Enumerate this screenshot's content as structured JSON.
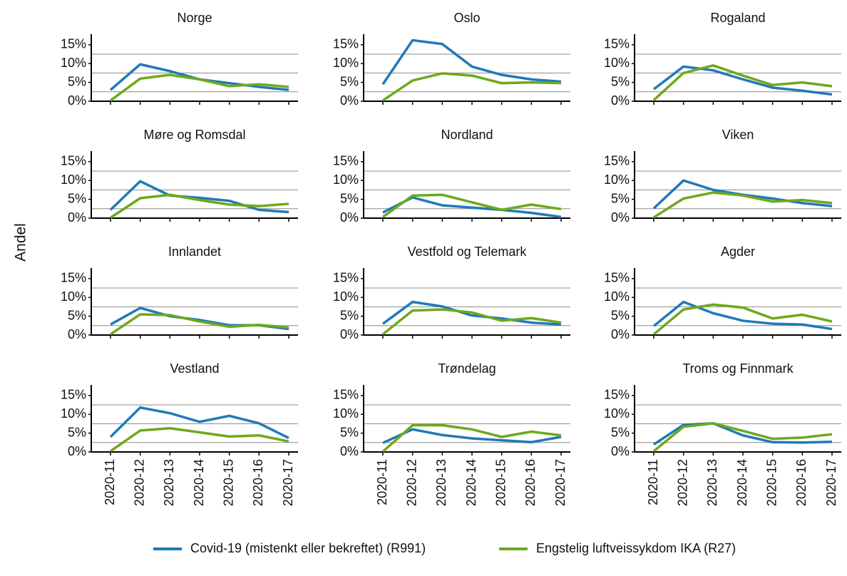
{
  "ylabel": "Andel",
  "chart_data": [
    {
      "type": "line",
      "title": "Norge",
      "categories": [
        "2020-11",
        "2020-12",
        "2020-13",
        "2020-14",
        "2020-15",
        "2020-16",
        "2020-17"
      ],
      "series": [
        {
          "name": "Covid-19 (mistenkt eller bekreftet) (R991)",
          "color": "#1f7ab8",
          "values": [
            3,
            9.8,
            8,
            5.8,
            4.8,
            3.8,
            3
          ]
        },
        {
          "name": "Engstelig luftveissykdom IKA (R27)",
          "color": "#6ea81c",
          "values": [
            0.2,
            6,
            7,
            5.8,
            4,
            4.5,
            3.8
          ]
        }
      ],
      "ylim": [
        0,
        17.8
      ],
      "yticks": [
        {
          "value": 0,
          "label": "0%"
        },
        {
          "value": 5,
          "label": "5%"
        },
        {
          "value": 10,
          "label": "10%"
        },
        {
          "value": 15,
          "label": "15%"
        }
      ],
      "ygrid": [
        2.5,
        7.5,
        12.5
      ]
    },
    {
      "type": "line",
      "title": "Oslo",
      "categories": [
        "2020-11",
        "2020-12",
        "2020-13",
        "2020-14",
        "2020-15",
        "2020-16",
        "2020-17"
      ],
      "series": [
        {
          "name": "Covid-19 (mistenkt eller bekreftet) (R991)",
          "color": "#1f7ab8",
          "values": [
            4.5,
            16.2,
            15.2,
            9.2,
            7,
            5.8,
            5.2
          ]
        },
        {
          "name": "Engstelig luftveissykdom IKA (R27)",
          "color": "#6ea81c",
          "values": [
            0.2,
            5.5,
            7.4,
            6.8,
            4.8,
            5,
            4.8
          ]
        }
      ],
      "ylim": [
        0,
        17.8
      ],
      "yticks": [
        {
          "value": 0,
          "label": "0%"
        },
        {
          "value": 5,
          "label": "5%"
        },
        {
          "value": 10,
          "label": "10%"
        },
        {
          "value": 15,
          "label": "15%"
        }
      ],
      "ygrid": [
        2.5,
        7.5,
        12.5
      ]
    },
    {
      "type": "line",
      "title": "Rogaland",
      "categories": [
        "2020-11",
        "2020-12",
        "2020-13",
        "2020-14",
        "2020-15",
        "2020-16",
        "2020-17"
      ],
      "series": [
        {
          "name": "Covid-19 (mistenkt eller bekreftet) (R991)",
          "color": "#1f7ab8",
          "values": [
            3.2,
            9.2,
            8.2,
            5.8,
            3.6,
            2.8,
            1.8
          ]
        },
        {
          "name": "Engstelig luftveissykdom IKA (R27)",
          "color": "#6ea81c",
          "values": [
            0.3,
            7.5,
            9.5,
            6.8,
            4.3,
            5,
            4
          ]
        }
      ],
      "ylim": [
        0,
        17.8
      ],
      "yticks": [
        {
          "value": 0,
          "label": "0%"
        },
        {
          "value": 5,
          "label": "5%"
        },
        {
          "value": 10,
          "label": "10%"
        },
        {
          "value": 15,
          "label": "15%"
        }
      ],
      "ygrid": [
        2.5,
        7.5,
        12.5
      ]
    },
    {
      "type": "line",
      "title": "Møre og Romsdal",
      "categories": [
        "2020-11",
        "2020-12",
        "2020-13",
        "2020-14",
        "2020-15",
        "2020-16",
        "2020-17"
      ],
      "series": [
        {
          "name": "Covid-19 (mistenkt eller bekreftet) (R991)",
          "color": "#1f7ab8",
          "values": [
            2.2,
            9.8,
            6,
            5.4,
            4.6,
            2.2,
            1.6
          ]
        },
        {
          "name": "Engstelig luftveissykdom IKA (R27)",
          "color": "#6ea81c",
          "values": [
            0.1,
            5.3,
            6.2,
            4.8,
            3.6,
            3.2,
            3.8
          ]
        }
      ],
      "ylim": [
        0,
        17.8
      ],
      "yticks": [
        {
          "value": 0,
          "label": "0%"
        },
        {
          "value": 5,
          "label": "5%"
        },
        {
          "value": 10,
          "label": "10%"
        },
        {
          "value": 15,
          "label": "15%"
        }
      ],
      "ygrid": [
        2.5,
        7.5,
        12.5
      ]
    },
    {
      "type": "line",
      "title": "Nordland",
      "categories": [
        "2020-11",
        "2020-12",
        "2020-13",
        "2020-14",
        "2020-15",
        "2020-16",
        "2020-17"
      ],
      "series": [
        {
          "name": "Covid-19 (mistenkt eller bekreftet) (R991)",
          "color": "#1f7ab8",
          "values": [
            1.5,
            5.5,
            3.4,
            2.8,
            2.2,
            1.4,
            0.3
          ]
        },
        {
          "name": "Engstelig luftveissykdom IKA (R27)",
          "color": "#6ea81c",
          "values": [
            0.3,
            6,
            6.2,
            4.2,
            2.2,
            3.6,
            2.4
          ]
        }
      ],
      "ylim": [
        0,
        17.8
      ],
      "yticks": [
        {
          "value": 0,
          "label": "0%"
        },
        {
          "value": 5,
          "label": "5%"
        },
        {
          "value": 10,
          "label": "10%"
        },
        {
          "value": 15,
          "label": "15%"
        }
      ],
      "ygrid": [
        2.5,
        7.5,
        12.5
      ]
    },
    {
      "type": "line",
      "title": "Viken",
      "categories": [
        "2020-11",
        "2020-12",
        "2020-13",
        "2020-14",
        "2020-15",
        "2020-16",
        "2020-17"
      ],
      "series": [
        {
          "name": "Covid-19 (mistenkt eller bekreftet) (R991)",
          "color": "#1f7ab8",
          "values": [
            2.6,
            10,
            7.5,
            6.2,
            5.2,
            4,
            3.2
          ]
        },
        {
          "name": "Engstelig luftveissykdom IKA (R27)",
          "color": "#6ea81c",
          "values": [
            0.2,
            5.2,
            6.8,
            6,
            4.4,
            4.8,
            4
          ]
        }
      ],
      "ylim": [
        0,
        17.8
      ],
      "yticks": [
        {
          "value": 0,
          "label": "0%"
        },
        {
          "value": 5,
          "label": "5%"
        },
        {
          "value": 10,
          "label": "10%"
        },
        {
          "value": 15,
          "label": "15%"
        }
      ],
      "ygrid": [
        2.5,
        7.5,
        12.5
      ]
    },
    {
      "type": "line",
      "title": "Innlandet",
      "categories": [
        "2020-11",
        "2020-12",
        "2020-13",
        "2020-14",
        "2020-15",
        "2020-16",
        "2020-17"
      ],
      "series": [
        {
          "name": "Covid-19 (mistenkt eller bekreftet) (R991)",
          "color": "#1f7ab8",
          "values": [
            2.8,
            7.2,
            5,
            4,
            2.6,
            2.6,
            1.6
          ]
        },
        {
          "name": "Engstelig luftveissykdom IKA (R27)",
          "color": "#6ea81c",
          "values": [
            0.2,
            5.5,
            5.3,
            3.6,
            2.2,
            2.7,
            2
          ]
        }
      ],
      "ylim": [
        0,
        17.8
      ],
      "yticks": [
        {
          "value": 0,
          "label": "0%"
        },
        {
          "value": 5,
          "label": "5%"
        },
        {
          "value": 10,
          "label": "10%"
        },
        {
          "value": 15,
          "label": "15%"
        }
      ],
      "ygrid": [
        2.5,
        7.5,
        12.5
      ]
    },
    {
      "type": "line",
      "title": "Vestfold og Telemark",
      "categories": [
        "2020-11",
        "2020-12",
        "2020-13",
        "2020-14",
        "2020-15",
        "2020-16",
        "2020-17"
      ],
      "series": [
        {
          "name": "Covid-19 (mistenkt eller bekreftet) (R991)",
          "color": "#1f7ab8",
          "values": [
            3,
            8.8,
            7.6,
            5.2,
            4.4,
            3.3,
            2.8
          ]
        },
        {
          "name": "Engstelig luftveissykdom IKA (R27)",
          "color": "#6ea81c",
          "values": [
            0.2,
            6.5,
            6.8,
            6,
            3.8,
            4.5,
            3.3
          ]
        }
      ],
      "ylim": [
        0,
        17.8
      ],
      "yticks": [
        {
          "value": 0,
          "label": "0%"
        },
        {
          "value": 5,
          "label": "5%"
        },
        {
          "value": 10,
          "label": "10%"
        },
        {
          "value": 15,
          "label": "15%"
        }
      ],
      "ygrid": [
        2.5,
        7.5,
        12.5
      ]
    },
    {
      "type": "line",
      "title": "Agder",
      "categories": [
        "2020-11",
        "2020-12",
        "2020-13",
        "2020-14",
        "2020-15",
        "2020-16",
        "2020-17"
      ],
      "series": [
        {
          "name": "Covid-19 (mistenkt eller bekreftet) (R991)",
          "color": "#1f7ab8",
          "values": [
            2.4,
            8.8,
            5.8,
            3.8,
            3,
            2.8,
            1.6
          ]
        },
        {
          "name": "Engstelig luftveissykdom IKA (R27)",
          "color": "#6ea81c",
          "values": [
            0.2,
            6.8,
            8.1,
            7.3,
            4.4,
            5.4,
            3.6
          ]
        }
      ],
      "ylim": [
        0,
        17.8
      ],
      "yticks": [
        {
          "value": 0,
          "label": "0%"
        },
        {
          "value": 5,
          "label": "5%"
        },
        {
          "value": 10,
          "label": "10%"
        },
        {
          "value": 15,
          "label": "15%"
        }
      ],
      "ygrid": [
        2.5,
        7.5,
        12.5
      ]
    },
    {
      "type": "line",
      "title": "Vestland",
      "categories": [
        "2020-11",
        "2020-12",
        "2020-13",
        "2020-14",
        "2020-15",
        "2020-16",
        "2020-17"
      ],
      "series": [
        {
          "name": "Covid-19 (mistenkt eller bekreftet) (R991)",
          "color": "#1f7ab8",
          "values": [
            4,
            11.8,
            10.3,
            8,
            9.6,
            7.6,
            3.7
          ]
        },
        {
          "name": "Engstelig luftveissykdom IKA (R27)",
          "color": "#6ea81c",
          "values": [
            0.2,
            5.7,
            6.3,
            5.2,
            4.1,
            4.4,
            2.8
          ]
        }
      ],
      "ylim": [
        0,
        17.8
      ],
      "yticks": [
        {
          "value": 0,
          "label": "0%"
        },
        {
          "value": 5,
          "label": "5%"
        },
        {
          "value": 10,
          "label": "10%"
        },
        {
          "value": 15,
          "label": "15%"
        }
      ],
      "ygrid": [
        2.5,
        7.5,
        12.5
      ]
    },
    {
      "type": "line",
      "title": "Trøndelag",
      "categories": [
        "2020-11",
        "2020-12",
        "2020-13",
        "2020-14",
        "2020-15",
        "2020-16",
        "2020-17"
      ],
      "series": [
        {
          "name": "Covid-19 (mistenkt eller bekreftet) (R991)",
          "color": "#1f7ab8",
          "values": [
            2.4,
            6,
            4.5,
            3.6,
            3.1,
            2.6,
            4
          ]
        },
        {
          "name": "Engstelig luftveissykdom IKA (R27)",
          "color": "#6ea81c",
          "values": [
            0.1,
            7.1,
            7.1,
            6,
            4,
            5.4,
            4.4
          ]
        }
      ],
      "ylim": [
        0,
        17.8
      ],
      "yticks": [
        {
          "value": 0,
          "label": "0%"
        },
        {
          "value": 5,
          "label": "5%"
        },
        {
          "value": 10,
          "label": "10%"
        },
        {
          "value": 15,
          "label": "15%"
        }
      ],
      "ygrid": [
        2.5,
        7.5,
        12.5
      ]
    },
    {
      "type": "line",
      "title": "Troms og Finnmark",
      "categories": [
        "2020-11",
        "2020-12",
        "2020-13",
        "2020-14",
        "2020-15",
        "2020-16",
        "2020-17"
      ],
      "series": [
        {
          "name": "Covid-19 (mistenkt eller bekreftet) (R991)",
          "color": "#1f7ab8",
          "values": [
            2,
            7.2,
            7.6,
            4.4,
            2.6,
            2.5,
            2.7
          ]
        },
        {
          "name": "Engstelig luftveissykdom IKA (R27)",
          "color": "#6ea81c",
          "values": [
            0.2,
            6.7,
            7.6,
            5.6,
            3.5,
            3.8,
            4.7
          ]
        }
      ],
      "ylim": [
        0,
        17.8
      ],
      "yticks": [
        {
          "value": 0,
          "label": "0%"
        },
        {
          "value": 5,
          "label": "5%"
        },
        {
          "value": 10,
          "label": "10%"
        },
        {
          "value": 15,
          "label": "15%"
        }
      ],
      "ygrid": [
        2.5,
        7.5,
        12.5
      ]
    }
  ]
}
